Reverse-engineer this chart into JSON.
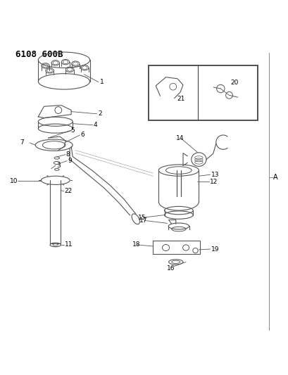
{
  "title": "6108 600B",
  "bg_color": "#ffffff",
  "line_color": "#555555",
  "text_color": "#000000",
  "fig_width": 4.1,
  "fig_height": 5.33,
  "dpi": 100,
  "label_A": "A"
}
